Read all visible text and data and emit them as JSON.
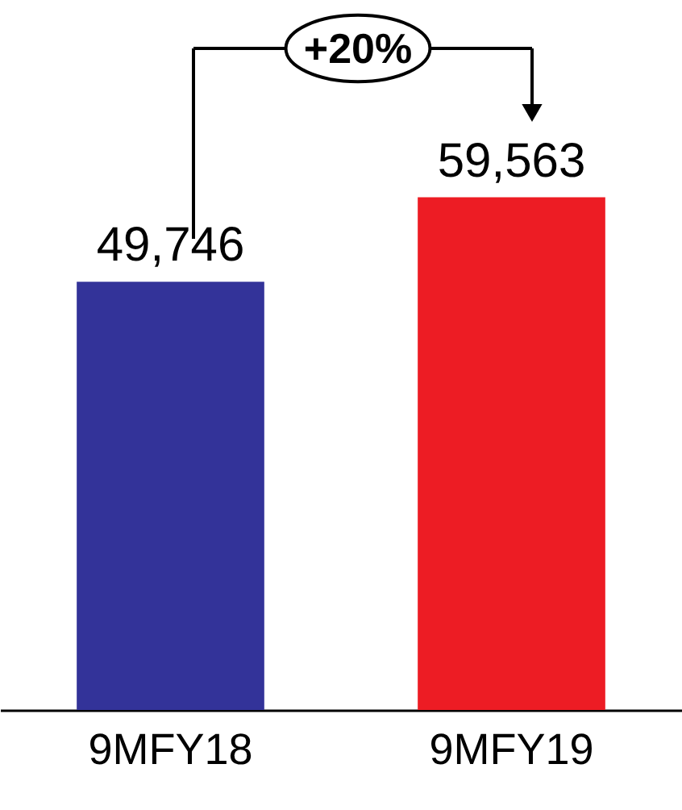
{
  "chart_data": {
    "type": "bar",
    "categories": [
      "9MFY18",
      "9MFY19"
    ],
    "values": [
      49746,
      59563
    ],
    "colors": [
      "#333399",
      "#ed1c24"
    ],
    "value_labels": [
      "49,746",
      "59,563"
    ],
    "annotations": [
      "+20%"
    ]
  }
}
